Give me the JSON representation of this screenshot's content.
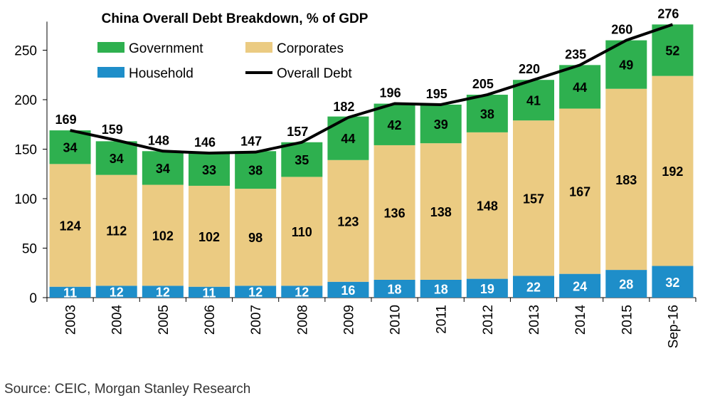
{
  "chart_data": {
    "type": "bar",
    "stacked": true,
    "title": "China Overall Debt Breakdown, % of GDP",
    "categories": [
      "2003",
      "2004",
      "2005",
      "2006",
      "2007",
      "2008",
      "2009",
      "2010",
      "2011",
      "2012",
      "2013",
      "2014",
      "2015",
      "Sep-16"
    ],
    "series": [
      {
        "name": "Household",
        "color": "#1e8ec9",
        "label_color": "#ffffff",
        "values": [
          11,
          12,
          12,
          11,
          12,
          12,
          16,
          18,
          18,
          19,
          22,
          24,
          28,
          32
        ]
      },
      {
        "name": "Corporates",
        "color": "#ebcb82",
        "label_color": "#000000",
        "values": [
          124,
          112,
          102,
          102,
          98,
          110,
          123,
          136,
          138,
          148,
          157,
          167,
          183,
          192
        ]
      },
      {
        "name": "Government",
        "color": "#2eb04f",
        "label_color": "#000000",
        "values": [
          34,
          34,
          34,
          33,
          38,
          35,
          44,
          42,
          39,
          38,
          41,
          44,
          49,
          52
        ]
      }
    ],
    "line": {
      "name": "Overall Debt",
      "color": "#000000",
      "values": [
        169,
        159,
        148,
        146,
        147,
        157,
        182,
        196,
        195,
        205,
        220,
        235,
        260,
        276
      ]
    },
    "ylim": [
      0,
      276
    ],
    "yticks": [
      0,
      50,
      100,
      150,
      200,
      250
    ],
    "xlabel": "",
    "ylabel": "",
    "grid": false,
    "legend": {
      "position": "top-left",
      "entries": [
        {
          "name": "Government",
          "color": "#2eb04f",
          "kind": "box"
        },
        {
          "name": "Corporates",
          "color": "#ebcb82",
          "kind": "box"
        },
        {
          "name": "Household",
          "color": "#1e8ec9",
          "kind": "box"
        },
        {
          "name": "Overall Debt",
          "color": "#000000",
          "kind": "line"
        }
      ]
    }
  },
  "source": "Source: CEIC, Morgan Stanley Research"
}
